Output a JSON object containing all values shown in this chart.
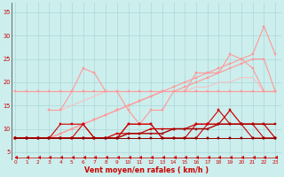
{
  "background_color": "#cceeed",
  "grid_color": "#aad8d8",
  "xlabel": "Vent moyen/en rafales ( km/h )",
  "xlabel_color": "#cc0000",
  "ylabel_ticks": [
    5,
    10,
    15,
    20,
    25,
    30,
    35
  ],
  "xticks": [
    0,
    1,
    2,
    3,
    4,
    5,
    6,
    7,
    8,
    9,
    10,
    11,
    12,
    13,
    14,
    15,
    16,
    17,
    18,
    19,
    20,
    21,
    22,
    23
  ],
  "xlim": [
    -0.3,
    23.5
  ],
  "ylim": [
    3.5,
    37
  ],
  "lines": [
    {
      "y": [
        18,
        18,
        18,
        18,
        18,
        18,
        18,
        18,
        18,
        18,
        18,
        18,
        18,
        18,
        18,
        18,
        18,
        18,
        18,
        18,
        18,
        18,
        18,
        18
      ],
      "color": "#ff9999",
      "lw": 0.8,
      "marker": "s",
      "ms": 1.5,
      "zorder": 2
    },
    {
      "y": [
        null,
        null,
        null,
        14,
        14,
        18,
        23,
        22,
        18,
        18,
        14,
        11,
        14,
        14,
        18,
        18,
        22,
        22,
        22,
        26,
        25,
        23,
        18,
        18
      ],
      "color": "#ff9999",
      "lw": 0.8,
      "marker": "s",
      "ms": 1.5,
      "zorder": 2
    },
    {
      "y": [
        8,
        8,
        8,
        8,
        9,
        10,
        11,
        12,
        13,
        14,
        15,
        16,
        17,
        18,
        19,
        20,
        21,
        22,
        23,
        24,
        25,
        26,
        32,
        26
      ],
      "color": "#ff9999",
      "lw": 0.8,
      "marker": "s",
      "ms": 1.5,
      "zorder": 2
    },
    {
      "y": [
        8,
        8,
        8,
        8,
        9,
        10,
        11,
        12,
        13,
        14,
        15,
        16,
        17,
        18,
        18,
        19,
        20,
        21,
        22,
        23,
        24,
        25,
        25,
        18
      ],
      "color": "#ff9999",
      "lw": 0.8,
      "marker": "s",
      "ms": 1.5,
      "zorder": 2
    },
    {
      "y": [
        null,
        null,
        null,
        14,
        14,
        15,
        16,
        17,
        18,
        18,
        18,
        18,
        18,
        18,
        18,
        18,
        19,
        19,
        20,
        20,
        21,
        21,
        18,
        18
      ],
      "color": "#ffbbbb",
      "lw": 0.7,
      "marker": null,
      "ms": 0,
      "zorder": 1
    },
    {
      "y": [
        8,
        8,
        8,
        8,
        8,
        8,
        8,
        8,
        8,
        8,
        8,
        8,
        8,
        8,
        8,
        8,
        8,
        8,
        8,
        8,
        8,
        8,
        8,
        8
      ],
      "color": "#cc2222",
      "lw": 0.7,
      "marker": "s",
      "ms": 1.5,
      "zorder": 3
    },
    {
      "comment": "dark red zigzag: 8,8,8,11,11,11,8 pattern",
      "y": [
        8,
        8,
        8,
        8,
        11,
        11,
        11,
        8,
        8,
        8,
        11,
        11,
        11,
        8,
        8,
        8,
        11,
        11,
        14,
        11,
        11,
        11,
        8,
        8
      ],
      "color": "#cc0000",
      "lw": 0.8,
      "marker": "s",
      "ms": 1.5,
      "zorder": 3
    },
    {
      "comment": "dark red rising then drop: 8,8,8,8,8,8,11,8,8,8,11,11,11,11... rises then 11,8,8",
      "y": [
        8,
        8,
        8,
        8,
        8,
        8,
        11,
        8,
        8,
        8,
        11,
        11,
        11,
        8,
        8,
        8,
        8,
        11,
        11,
        11,
        11,
        8,
        8,
        8
      ],
      "color": "#cc0000",
      "lw": 0.8,
      "marker": "s",
      "ms": 1.5,
      "zorder": 3
    },
    {
      "y": [
        8,
        8,
        8,
        8,
        8,
        8,
        8,
        8,
        8,
        9,
        9,
        9,
        10,
        10,
        10,
        10,
        11,
        11,
        11,
        14,
        11,
        11,
        11,
        8
      ],
      "color": "#cc0000",
      "lw": 0.9,
      "marker": "s",
      "ms": 1.5,
      "zorder": 3
    },
    {
      "y": [
        8,
        8,
        8,
        8,
        8,
        8,
        8,
        8,
        8,
        8,
        9,
        9,
        9,
        9,
        10,
        10,
        10,
        10,
        11,
        11,
        11,
        11,
        11,
        11
      ],
      "color": "#aa0000",
      "lw": 1.0,
      "marker": "s",
      "ms": 1.5,
      "zorder": 3
    },
    {
      "y": [
        8,
        8,
        8,
        8,
        8,
        8,
        8,
        8,
        8,
        8,
        8,
        8,
        8,
        8,
        8,
        8,
        8,
        8,
        8,
        8,
        8,
        8,
        8,
        8
      ],
      "color": "#880000",
      "lw": 0.7,
      "marker": "s",
      "ms": 1.5,
      "zorder": 3
    },
    {
      "y": [
        3.8,
        3.8,
        3.8,
        3.8,
        3.8,
        3.8,
        3.8,
        3.8,
        3.8,
        3.8,
        3.8,
        3.8,
        3.8,
        3.8,
        3.8,
        3.8,
        3.8,
        3.8,
        3.8,
        3.8,
        3.8,
        3.8,
        3.8,
        3.8
      ],
      "color": "#cc0000",
      "lw": 0.5,
      "marker": 4,
      "ms": 3,
      "zorder": 4
    }
  ]
}
